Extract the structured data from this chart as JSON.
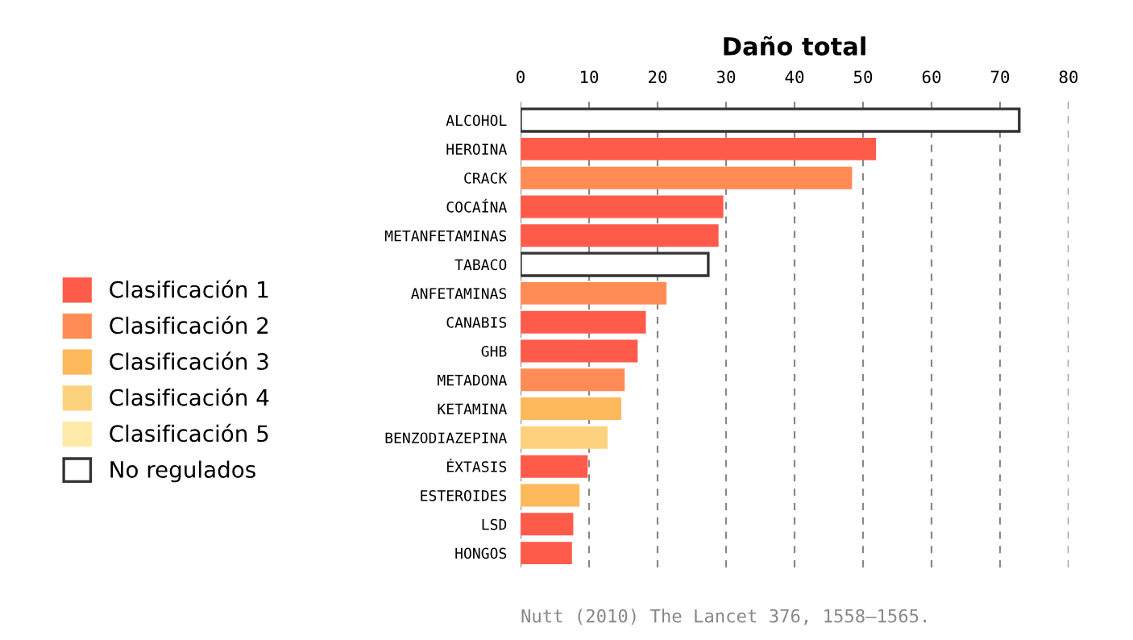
{
  "chart_data": {
    "type": "bar",
    "orientation": "horizontal",
    "title": "Daño total",
    "categories": [
      "ALCOHOL",
      "HEROINA",
      "CRACK",
      "COCAÍNA",
      "METANFETAMINAS",
      "TABACO",
      "ANFETAMINAS",
      "CANABIS",
      "GHB",
      "METADONA",
      "KETAMINA",
      "BENZODIAZEPINA",
      "ÉXTASIS",
      "ESTEROIDES",
      "LSD",
      "HONGOS"
    ],
    "series": [
      {
        "name": "Clasificación 1",
        "color": "#ff5b4b",
        "values": [
          null,
          51.9,
          null,
          29.6,
          28.9,
          null,
          null,
          18.3,
          17.1,
          null,
          null,
          null,
          9.8,
          null,
          7.7,
          7.5
        ]
      },
      {
        "name": "Clasificación 2",
        "color": "#ff8c55",
        "values": [
          null,
          null,
          48.4,
          null,
          null,
          null,
          21.3,
          null,
          null,
          15.2,
          null,
          null,
          null,
          null,
          null,
          null
        ]
      },
      {
        "name": "Clasificación 3",
        "color": "#fdb95b",
        "values": [
          null,
          null,
          null,
          null,
          null,
          null,
          null,
          null,
          null,
          null,
          14.7,
          null,
          null,
          8.6,
          null,
          null
        ]
      },
      {
        "name": "Clasificación 4",
        "color": "#fdd27e",
        "values": [
          null,
          null,
          null,
          null,
          null,
          null,
          null,
          null,
          null,
          null,
          null,
          12.7,
          null,
          null,
          null,
          null
        ]
      },
      {
        "name": "Clasificación 5",
        "color": "#fdeaa8",
        "values": [
          null,
          null,
          null,
          null,
          null,
          null,
          null,
          null,
          null,
          null,
          null,
          null,
          null,
          null,
          null,
          null
        ]
      },
      {
        "name": "No regulados",
        "color": "#ffffff",
        "values": [
          72.8,
          null,
          null,
          null,
          null,
          27.4,
          null,
          null,
          null,
          null,
          null,
          null,
          null,
          null,
          null,
          null
        ]
      }
    ],
    "xlim": [
      0,
      80
    ],
    "xticks": [
      0,
      10,
      20,
      30,
      40,
      50,
      60,
      70,
      80
    ],
    "grid": "x",
    "legend": "left",
    "annotations": [
      "Nutt (2010) The Lancet 376, 1558–1565."
    ]
  }
}
